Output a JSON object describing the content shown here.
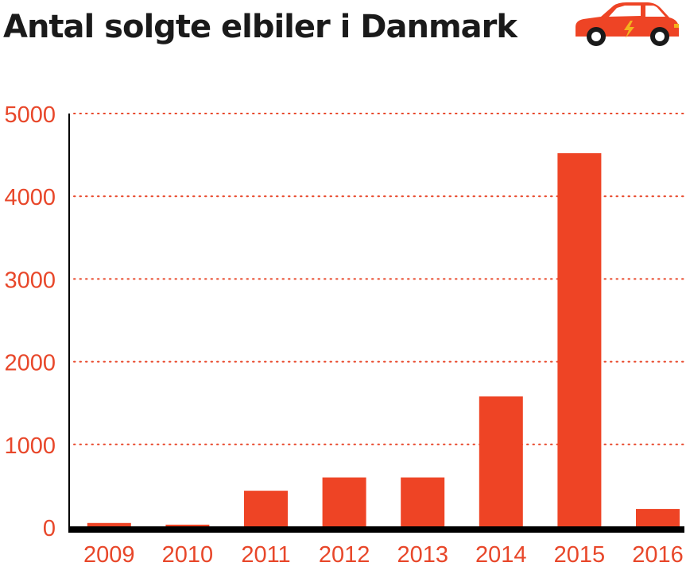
{
  "title": "Antal solgte elbiler i Danmark",
  "icon": "electric-car-icon",
  "colors": {
    "bar": "#ee4425",
    "accent": "#e8472a",
    "grid": "#e8472a",
    "axis": "#000000",
    "title": "#1a1a1a"
  },
  "chart_data": {
    "type": "bar",
    "title": "Antal solgte elbiler i Danmark",
    "xlabel": "",
    "ylabel": "",
    "categories": [
      "2009",
      "2010",
      "2011",
      "2012",
      "2013",
      "2014",
      "2015",
      "2016"
    ],
    "values": [
      50,
      30,
      440,
      600,
      600,
      1580,
      4520,
      220
    ],
    "ylim": [
      0,
      5000
    ],
    "yticks": [
      0,
      1000,
      2000,
      3000,
      4000,
      5000
    ],
    "ytick_labels": [
      "0",
      "1000",
      "2000",
      "3000",
      "4000",
      "5000"
    ],
    "grid": "horizontal dotted",
    "legend": "none"
  }
}
